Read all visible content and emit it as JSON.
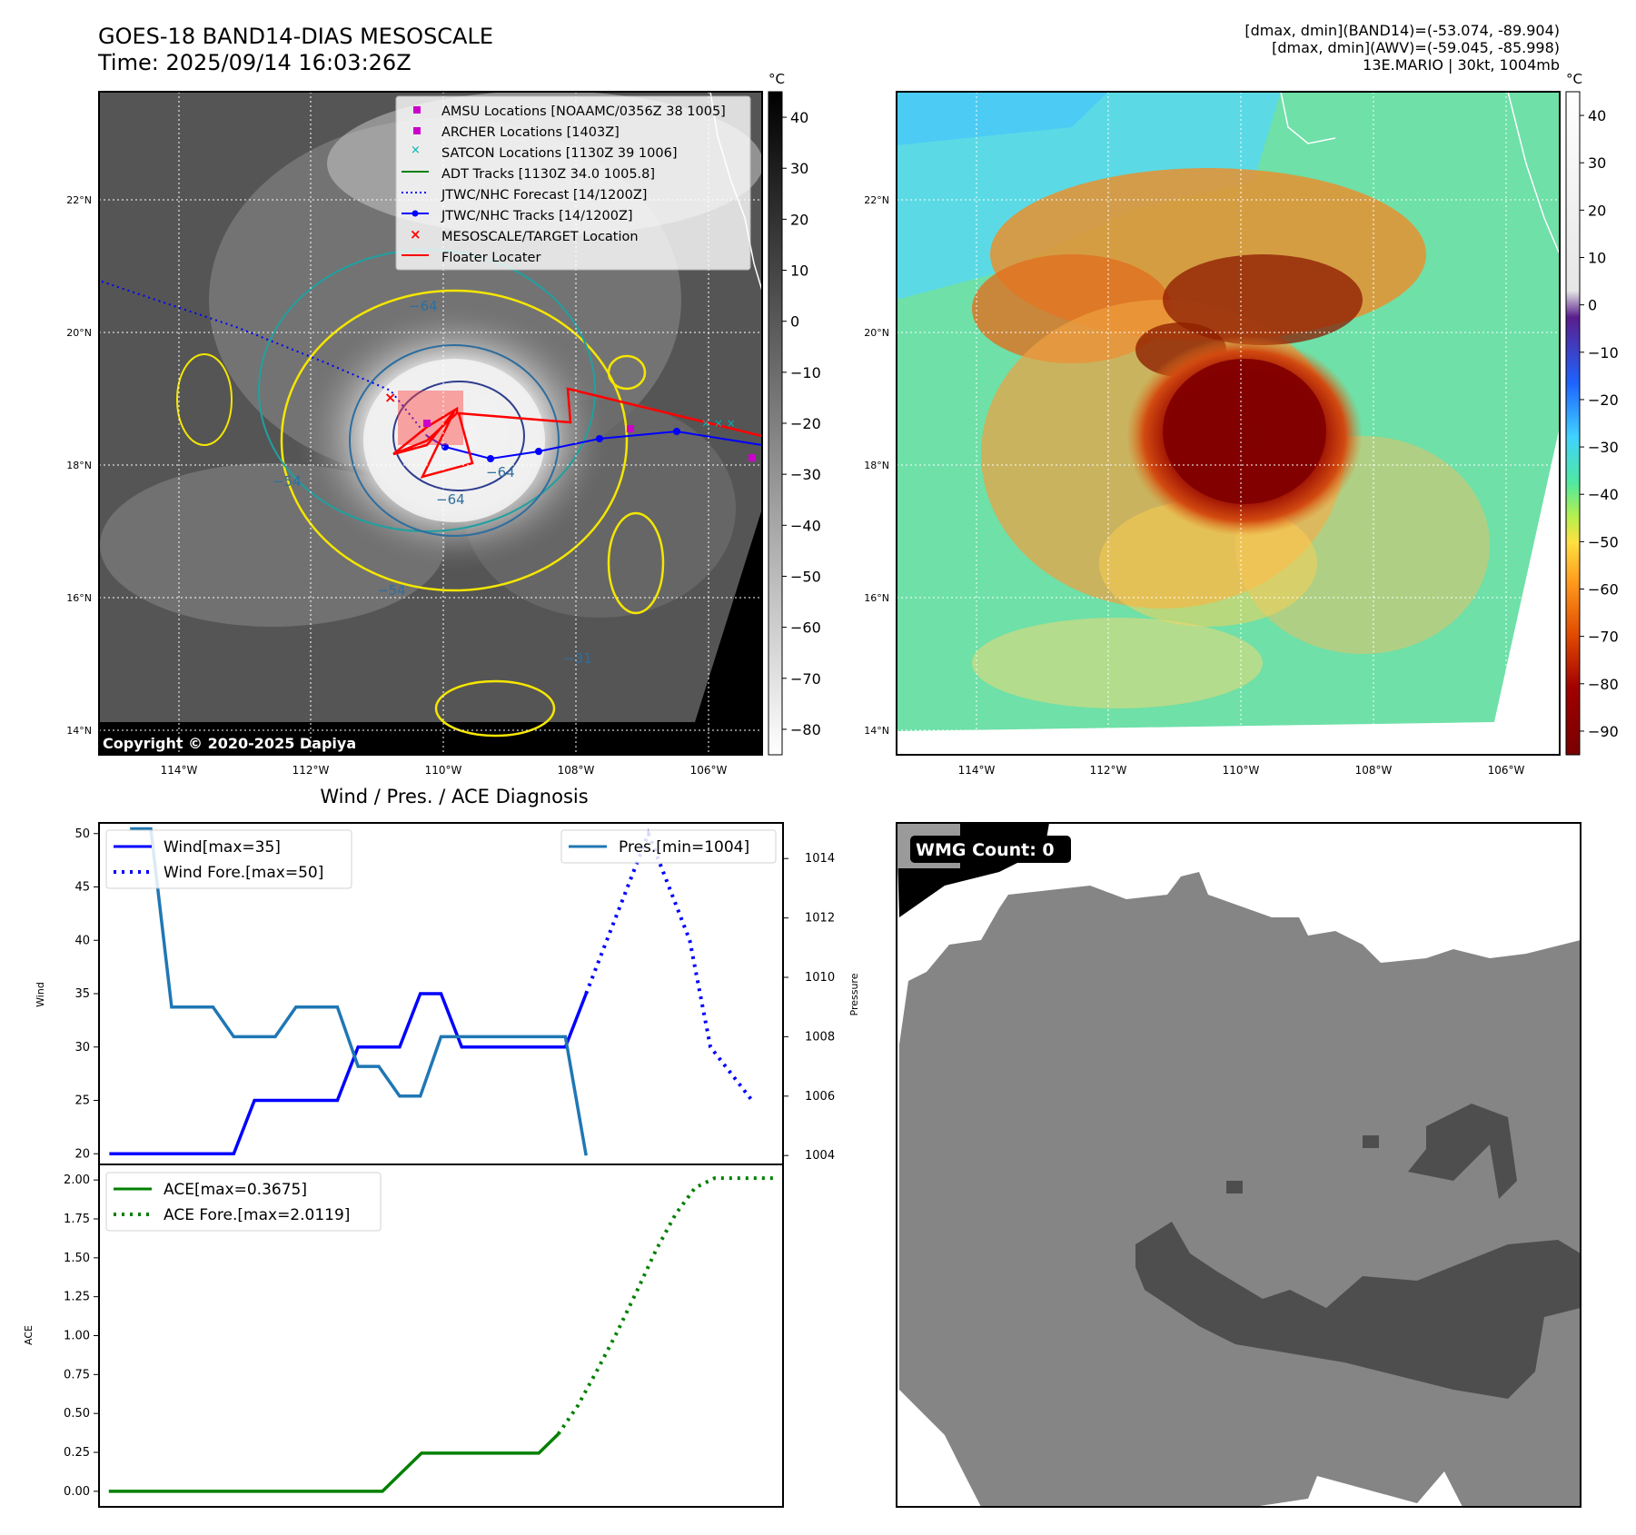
{
  "header": {
    "title_line1": "GOES-18 BAND14-DIAS MESOSCALE",
    "title_line2": "Time: 2025/09/14 16:03:26Z",
    "info_line1": "[dmax, dmin](BAND14)=(-53.074, -89.904)",
    "info_line2": "[dmax, dmin](AWV)=(-59.045, -85.998)",
    "info_line3": "13E.MARIO | 30kt, 1004mb"
  },
  "map_ir": {
    "copyright": "Copyright © 2020-2025 Dapiya",
    "lat_labels": [
      "22°N",
      "20°N",
      "18°N",
      "16°N",
      "14°N"
    ],
    "lon_labels": [
      "114°W",
      "112°W",
      "110°W",
      "108°W",
      "106°W"
    ],
    "colorbar_unit": "°C",
    "colorbar_ticks": [
      "40",
      "30",
      "20",
      "10",
      "0",
      "−10",
      "−20",
      "−30",
      "−40",
      "−50",
      "−60",
      "−70",
      "−80"
    ],
    "contour_labels": [
      "−64",
      "−54",
      "−64",
      "−64",
      "−54",
      "−31"
    ],
    "legend": [
      {
        "label": "AMSU Locations [NOAAMC/0356Z 38 1005]",
        "color": "#cc00cc",
        "marker": "square"
      },
      {
        "label": "ARCHER Locations [1403Z]",
        "color": "#cc00cc",
        "marker": "square"
      },
      {
        "label": "SATCON Locations [1130Z 39 1006]",
        "color": "#00b3b3",
        "marker": "x"
      },
      {
        "label": "ADT Tracks [1130Z 34.0 1005.8]",
        "color": "#008000",
        "marker": "line"
      },
      {
        "label": "JTWC/NHC Forecast [14/1200Z]",
        "color": "#0000ff",
        "marker": "dotted"
      },
      {
        "label": "JTWC/NHC Tracks [14/1200Z]",
        "color": "#0000ff",
        "marker": "line-dot"
      },
      {
        "label": "MESOSCALE/TARGET Location",
        "color": "#ff0000",
        "marker": "x"
      },
      {
        "label": "Floater Locater",
        "color": "#ff0000",
        "marker": "line"
      }
    ]
  },
  "map_awv": {
    "lat_labels": [
      "22°N",
      "20°N",
      "18°N",
      "16°N",
      "14°N"
    ],
    "lon_labels": [
      "114°W",
      "112°W",
      "110°W",
      "108°W",
      "106°W"
    ],
    "colorbar_unit": "°C",
    "colorbar_ticks": [
      "40",
      "30",
      "20",
      "10",
      "0",
      "−10",
      "−20",
      "−30",
      "−40",
      "−50",
      "−60",
      "−70",
      "−80",
      "−90"
    ]
  },
  "wmg": {
    "badge": "WMG Count: 0"
  },
  "chart_data": [
    {
      "type": "line",
      "title": "Wind / Pres. / ACE Diagnosis",
      "ylabel": "Wind",
      "ylabel_right": "Pressure",
      "ylim": [
        19,
        51
      ],
      "ylim_right": [
        1003.7,
        1015.2
      ],
      "yticks": [
        "50",
        "45",
        "40",
        "35",
        "30",
        "25",
        "20"
      ],
      "yticks_right": [
        "1014",
        "1012",
        "1010",
        "1008",
        "1006",
        "1004"
      ],
      "x": [
        0,
        1,
        2,
        3,
        4,
        5,
        6,
        7,
        8,
        9,
        10,
        11,
        12,
        13,
        14,
        15,
        16,
        17,
        18,
        19,
        20,
        21,
        22,
        23,
        24
      ],
      "series": [
        {
          "name": "Wind[max=35]",
          "color": "#0000ff",
          "style": "solid",
          "points": [
            [
              0,
              20
            ],
            [
              6,
              20
            ],
            [
              7,
              25
            ],
            [
              11,
              25
            ],
            [
              12,
              30
            ],
            [
              14,
              30
            ],
            [
              15,
              35
            ],
            [
              16,
              35
            ],
            [
              17,
              30
            ],
            [
              22,
              30
            ],
            [
              23,
              35
            ]
          ]
        },
        {
          "name": "Wind Fore.[max=50]",
          "color": "#0000ff",
          "style": "dotted",
          "points": [
            [
              23,
              35
            ],
            [
              24,
              40
            ],
            [
              25,
              45
            ],
            [
              26,
              50
            ],
            [
              27,
              45
            ],
            [
              28,
              40
            ],
            [
              29,
              30
            ],
            [
              30,
              27.5
            ],
            [
              31,
              25
            ]
          ]
        },
        {
          "name": "Pres.[min=1004]",
          "color": "#1f77b4",
          "style": "solid",
          "axis": "right",
          "points": [
            [
              1,
              1015
            ],
            [
              2,
              1015
            ],
            [
              3,
              1009
            ],
            [
              5,
              1009
            ],
            [
              6,
              1008
            ],
            [
              8,
              1008
            ],
            [
              9,
              1009
            ],
            [
              11,
              1009
            ],
            [
              12,
              1007
            ],
            [
              13,
              1007
            ],
            [
              14,
              1006
            ],
            [
              15,
              1006
            ],
            [
              16,
              1008
            ],
            [
              17,
              1008
            ],
            [
              21,
              1008
            ],
            [
              22,
              1008
            ],
            [
              23,
              1004
            ]
          ]
        }
      ],
      "xlim": [
        -0.5,
        32.5
      ]
    },
    {
      "type": "line",
      "ylabel": "ACE",
      "ylim": [
        -0.1,
        2.1
      ],
      "yticks": [
        "2.00",
        "1.75",
        "1.50",
        "1.25",
        "1.00",
        "0.75",
        "0.50",
        "0.25",
        "0.00"
      ],
      "series": [
        {
          "name": "ACE[max=0.3675]",
          "color": "#008000",
          "style": "solid",
          "points": [
            [
              0,
              0
            ],
            [
              14,
              0
            ],
            [
              16,
              0.245
            ],
            [
              22,
              0.245
            ],
            [
              23,
              0.3675
            ]
          ]
        },
        {
          "name": "ACE Fore.[max=2.0119]",
          "color": "#008000",
          "style": "dotted",
          "points": [
            [
              23,
              0.3675
            ],
            [
              24,
              0.55
            ],
            [
              25,
              0.78
            ],
            [
              26,
              1.02
            ],
            [
              27,
              1.28
            ],
            [
              28,
              1.55
            ],
            [
              29,
              1.78
            ],
            [
              30,
              1.95
            ],
            [
              31,
              2.0119
            ],
            [
              32,
              2.0119
            ],
            [
              34,
              2.0119
            ]
          ]
        }
      ],
      "xlim": [
        -0.5,
        34.5
      ]
    }
  ]
}
